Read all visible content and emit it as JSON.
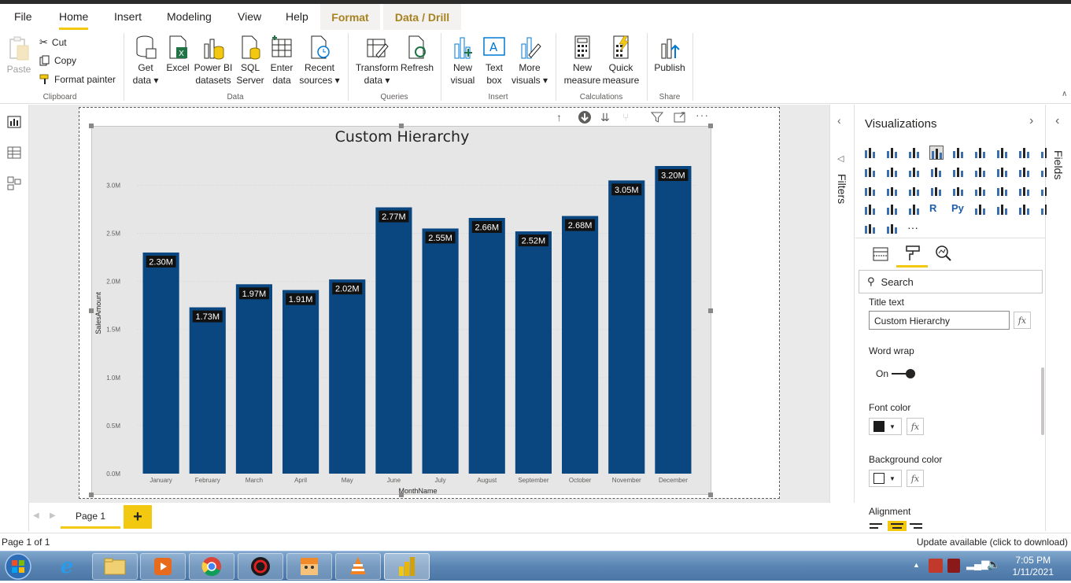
{
  "ribbon_tabs": {
    "file": "File",
    "home": "Home",
    "insert": "Insert",
    "modeling": "Modeling",
    "view": "View",
    "help": "Help",
    "format": "Format",
    "data_drill": "Data / Drill"
  },
  "clipboard": {
    "paste": "Paste",
    "cut": "Cut",
    "copy": "Copy",
    "format_painter": "Format painter",
    "label": "Clipboard"
  },
  "data_group": {
    "get_data": "Get",
    "get_data_2": "data ▾",
    "excel": "Excel",
    "power_bi": "Power BI",
    "power_bi_2": "datasets",
    "sql": "SQL",
    "sql_2": "Server",
    "enter": "Enter",
    "enter_2": "data",
    "recent": "Recent",
    "recent_2": "sources ▾",
    "label": "Data"
  },
  "queries_group": {
    "transform": "Transform",
    "transform_2": "data ▾",
    "refresh": "Refresh",
    "label": "Queries"
  },
  "insert_group": {
    "new_visual": "New",
    "new_visual_2": "visual",
    "text_box": "Text",
    "text_box_2": "box",
    "more_visuals": "More",
    "more_visuals_2": "visuals ▾",
    "label": "Insert"
  },
  "calc_group": {
    "new_measure": "New",
    "new_measure_2": "measure",
    "quick_measure": "Quick",
    "quick_measure_2": "measure",
    "label": "Calculations"
  },
  "share_group": {
    "publish": "Publish",
    "label": "Share"
  },
  "chart_data": {
    "type": "bar",
    "title": "Custom Hierarchy",
    "xlabel": "MonthName",
    "ylabel": "SalesAmount",
    "categories": [
      "January",
      "February",
      "March",
      "April",
      "May",
      "June",
      "July",
      "August",
      "September",
      "October",
      "November",
      "December"
    ],
    "values": [
      2.3,
      1.73,
      1.97,
      1.91,
      2.02,
      2.77,
      2.55,
      2.66,
      2.52,
      2.68,
      3.05,
      3.2
    ],
    "data_labels": [
      "2.30M",
      "1.73M",
      "1.97M",
      "1.91M",
      "2.02M",
      "2.77M",
      "2.55M",
      "2.66M",
      "2.52M",
      "2.68M",
      "3.05M",
      "3.20M"
    ],
    "yticks": [
      0,
      0.5,
      1.0,
      1.5,
      2.0,
      2.5,
      3.0
    ],
    "ytick_labels": [
      "0.0M",
      "0.5M",
      "1.0M",
      "1.5M",
      "2.0M",
      "2.5M",
      "3.0M"
    ],
    "ylim": [
      0,
      3.2
    ],
    "grid": true,
    "bar_color": "#0a4780"
  },
  "filters_label": "Filters",
  "fields_label": "Fields",
  "viz_pane": {
    "title": "Visualizations",
    "search_placeholder": "Search",
    "title_text_label": "Title text",
    "title_text_value": "Custom Hierarchy",
    "word_wrap_label": "Word wrap",
    "word_wrap_state": "On",
    "font_color_label": "Font color",
    "font_color": "#1b1b1b",
    "background_color_label": "Background color",
    "background_color": "#ffffff",
    "alignment_label": "Alignment",
    "fx": "fx",
    "r_label": "R",
    "py_label": "Py",
    "more": "···"
  },
  "page_tabs": {
    "page1": "Page 1",
    "add": "+"
  },
  "status": {
    "page": "Page 1 of 1",
    "update": "Update available (click to download)"
  },
  "clock": {
    "time": "7:05 PM",
    "date": "1/11/2021"
  },
  "colors": {
    "accent": "#f2c811",
    "context_tab": "#a7821e"
  }
}
